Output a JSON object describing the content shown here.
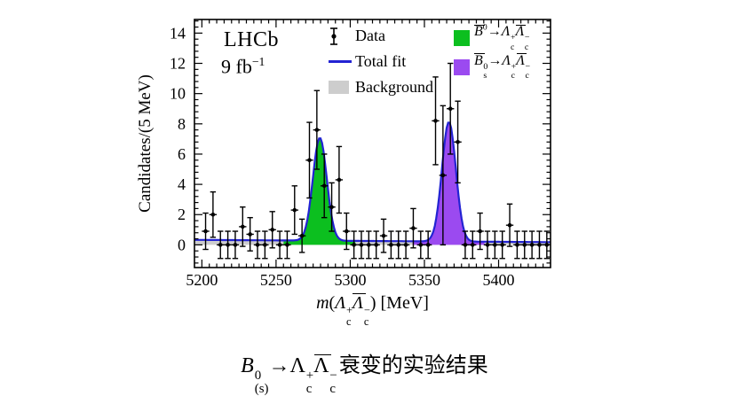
{
  "figure": {
    "header": {
      "experiment": "LHCb",
      "luminosity_base": "9 fb",
      "luminosity_sup": "−1"
    }
  },
  "chart_data": {
    "type": "scatter",
    "title": "",
    "xlabel_text": "m(Λc+ Λ̄c−) [MeV]",
    "xlabel_formula": [
      {
        "t": "m",
        "it": 1
      },
      {
        "t": "("
      },
      {
        "t": "Λ",
        "it": 1,
        "sup": "+",
        "sub": "c"
      },
      {
        "t": "Λ",
        "it": 1,
        "bar": 1,
        "sup": "−",
        "sub": "c"
      },
      {
        "t": ") [MeV]"
      }
    ],
    "ylabel": "Candidates/(5 MeV)",
    "xlim": [
      5195,
      5435
    ],
    "ylim": [
      -1.5,
      14.9
    ],
    "xticks": [
      5200,
      5250,
      5300,
      5350,
      5400
    ],
    "yticks": [
      0,
      2,
      4,
      6,
      8,
      10,
      12,
      14
    ],
    "x_minor_step": 5,
    "y_minor_step": 0.4,
    "bin_width_mev": 5,
    "grid": false,
    "legend": {
      "data_label": "Data",
      "total_fit_label": "Total fit",
      "background_label": "Background"
    },
    "points": [
      [
        5202.5,
        0.9,
        1.2
      ],
      [
        5207.5,
        2.0,
        1.5
      ],
      [
        5212.5,
        0,
        0.9
      ],
      [
        5217.5,
        0,
        0.9
      ],
      [
        5222.5,
        0,
        0.9
      ],
      [
        5227.5,
        1.2,
        1.3
      ],
      [
        5232.5,
        0.7,
        1.1
      ],
      [
        5237.5,
        0,
        0.9
      ],
      [
        5242.5,
        0,
        0.9
      ],
      [
        5247.5,
        1.0,
        1.2
      ],
      [
        5252.5,
        0,
        0.9
      ],
      [
        5257.5,
        0,
        0.9
      ],
      [
        5262.5,
        2.3,
        1.6
      ],
      [
        5267.5,
        0.6,
        1.1
      ],
      [
        5272.5,
        5.6,
        2.5
      ],
      [
        5277.5,
        7.6,
        2.6
      ],
      [
        5282.5,
        3.9,
        2.1
      ],
      [
        5287.5,
        2.5,
        1.6
      ],
      [
        5292.5,
        4.3,
        2.2
      ],
      [
        5297.5,
        0.9,
        1.2
      ],
      [
        5302.5,
        0,
        0.9
      ],
      [
        5307.5,
        0,
        0.9
      ],
      [
        5312.5,
        0,
        0.9
      ],
      [
        5317.5,
        0,
        0.9
      ],
      [
        5322.5,
        0.6,
        1.1
      ],
      [
        5327.5,
        0,
        0.9
      ],
      [
        5332.5,
        0,
        0.9
      ],
      [
        5337.5,
        0,
        0.9
      ],
      [
        5342.5,
        1.1,
        1.3
      ],
      [
        5347.5,
        0,
        0.9
      ],
      [
        5352.5,
        0,
        0.9
      ],
      [
        5357.5,
        8.2,
        2.9
      ],
      [
        5362.5,
        4.6,
        4.6
      ],
      [
        5367.5,
        9.0,
        3.0
      ],
      [
        5372.5,
        6.8,
        2.7
      ],
      [
        5377.5,
        0,
        0.9
      ],
      [
        5382.5,
        0,
        0.9
      ],
      [
        5387.5,
        0.9,
        1.2
      ],
      [
        5392.5,
        0,
        0.9
      ],
      [
        5397.5,
        0,
        0.9
      ],
      [
        5402.5,
        0,
        0.9
      ],
      [
        5407.5,
        1.3,
        1.4
      ],
      [
        5412.5,
        0,
        0.9
      ],
      [
        5417.5,
        0,
        0.9
      ],
      [
        5422.5,
        0,
        0.9
      ],
      [
        5427.5,
        0,
        0.9
      ],
      [
        5432.5,
        0,
        0.9
      ]
    ],
    "fit": {
      "total_color": "#2323d3",
      "background": {
        "color": "#cdcdcd",
        "level_left": 0.33,
        "level_right": 0.18
      },
      "peaks": [
        {
          "name": "B0 -> Lc+ Lcbar-",
          "center": 5279.5,
          "sigma": 4.7,
          "amplitude": 6.8,
          "color": "#0cbf1f"
        },
        {
          "name": "Bs0 -> Lc+ Lcbar-",
          "center": 5366.5,
          "sigma": 4.7,
          "amplitude": 7.9,
          "color": "#9b4af0"
        }
      ]
    },
    "processes": [
      {
        "color": "#0cbf1f",
        "text": "B̄0 → Λc+ Λ̄c−",
        "formula": [
          {
            "t": "B",
            "it": 1,
            "bar": 1,
            "sup": "0"
          },
          {
            "t": "→"
          },
          {
            "t": "Λ",
            "it": 1,
            "sup": "+",
            "sub": "c"
          },
          {
            "t": "Λ",
            "it": 1,
            "bar": 1,
            "sup": "−",
            "sub": "c"
          }
        ]
      },
      {
        "color": "#9b4af0",
        "text": "B̄s0 → Λc+ Λ̄c−",
        "formula": [
          {
            "t": "B",
            "it": 1,
            "bar": 1,
            "sup": "0",
            "sub": "s"
          },
          {
            "t": "→"
          },
          {
            "t": "Λ",
            "it": 1,
            "sup": "+",
            "sub": "c"
          },
          {
            "t": "Λ",
            "it": 1,
            "bar": 1,
            "sup": "−",
            "sub": "c"
          }
        ]
      }
    ]
  },
  "caption": {
    "formula": [
      {
        "t": "B",
        "it": 1,
        "sup": "0",
        "sub": "(s)"
      },
      {
        "t": " → "
      },
      {
        "t": "Λ",
        "sup": "+",
        "sub": "c"
      },
      {
        "t": "Λ",
        "bar": 1,
        "sup": "−",
        "sub": "c"
      }
    ],
    "text": "衰变的实验结果",
    "full_text": "B0(s) → Λc+ Λ̄c− 衰变的实验结果"
  }
}
